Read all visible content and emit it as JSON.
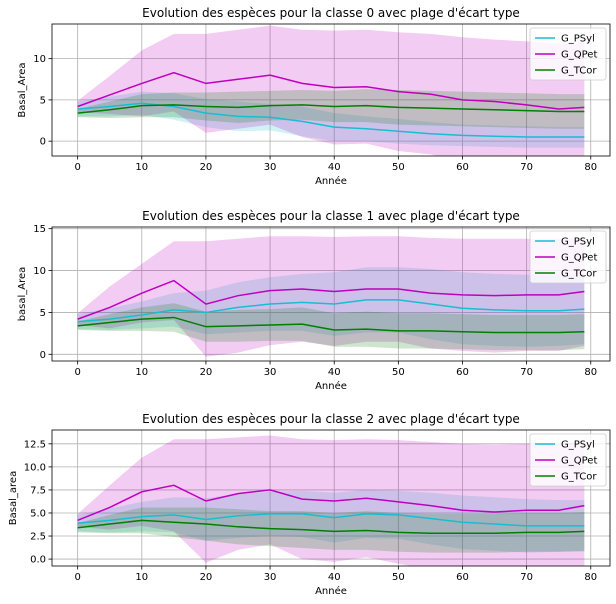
{
  "chart_data": [
    {
      "type": "line",
      "title": "Evolution des espèces pour la classe 0 avec plage d'écart type",
      "xlabel": "Année",
      "ylabel": "Basal_Area",
      "xlim": [
        -4,
        83
      ],
      "ylim": [
        -1.8,
        14.2
      ],
      "xticks": [
        0,
        10,
        20,
        30,
        40,
        50,
        60,
        70,
        80
      ],
      "yticks": [
        0,
        5,
        10
      ],
      "ytick_labels": [
        "0",
        "5",
        "10"
      ],
      "grid": true,
      "legend": "upper right",
      "series": [
        {
          "name": "G_PSyl",
          "color": "#17becf",
          "x": [
            0,
            5,
            10,
            15,
            20,
            25,
            30,
            35,
            40,
            45,
            50,
            55,
            60,
            65,
            70,
            75,
            79
          ],
          "y": [
            3.9,
            4.2,
            4.6,
            4.2,
            3.4,
            3.0,
            2.9,
            2.4,
            1.7,
            1.5,
            1.2,
            0.9,
            0.7,
            0.6,
            0.5,
            0.5,
            0.5
          ],
          "upper": [
            4.8,
            5.4,
            6.0,
            5.8,
            5.1,
            4.8,
            4.5,
            4.2,
            3.4,
            3.0,
            2.7,
            2.3,
            2.0,
            1.9,
            1.8,
            1.7,
            1.7
          ],
          "lower": [
            3.0,
            3.0,
            3.2,
            2.6,
            1.7,
            1.2,
            1.3,
            0.6,
            0.0,
            -0.0,
            -0.3,
            -0.5,
            -0.6,
            -0.7,
            -0.8,
            -0.8,
            -0.8
          ]
        },
        {
          "name": "G_QPet",
          "color": "#bf00bf",
          "x": [
            0,
            5,
            10,
            15,
            20,
            25,
            30,
            35,
            40,
            45,
            50,
            55,
            60,
            65,
            70,
            75,
            79
          ],
          "y": [
            4.2,
            5.6,
            7.0,
            8.3,
            7.0,
            7.5,
            8.0,
            7.0,
            6.5,
            6.6,
            6.0,
            5.7,
            5.0,
            4.8,
            4.4,
            3.9,
            4.1
          ],
          "upper": [
            4.9,
            7.9,
            11.0,
            13.0,
            13.0,
            13.5,
            14.0,
            13.5,
            13.4,
            13.5,
            13.2,
            13.0,
            12.6,
            12.3,
            12.1,
            11.8,
            11.9
          ],
          "lower": [
            3.5,
            3.3,
            3.0,
            3.6,
            1.0,
            1.5,
            2.0,
            0.5,
            -0.4,
            -0.3,
            -1.2,
            -1.6,
            -2.6,
            -2.7,
            -3.3,
            -4.0,
            -3.7
          ]
        },
        {
          "name": "G_TCor",
          "color": "#007f00",
          "x": [
            0,
            5,
            10,
            15,
            20,
            25,
            30,
            35,
            40,
            45,
            50,
            55,
            60,
            65,
            70,
            75,
            79
          ],
          "y": [
            3.4,
            3.8,
            4.3,
            4.4,
            4.2,
            4.1,
            4.3,
            4.4,
            4.2,
            4.3,
            4.1,
            4.0,
            3.9,
            3.8,
            3.7,
            3.6,
            3.6
          ],
          "upper": [
            3.9,
            4.8,
            5.7,
            5.9,
            5.9,
            6.0,
            6.1,
            6.2,
            6.1,
            6.3,
            6.2,
            6.1,
            6.0,
            5.9,
            5.8,
            5.7,
            5.7
          ],
          "lower": [
            2.9,
            2.8,
            2.9,
            2.9,
            2.5,
            2.2,
            2.5,
            2.6,
            2.3,
            2.3,
            2.0,
            1.9,
            1.8,
            1.7,
            1.6,
            1.5,
            1.5
          ]
        }
      ]
    },
    {
      "type": "line",
      "title": "Evolution des espèces pour la classe 1 avec plage d'écart type",
      "xlabel": "Année",
      "ylabel": "basal_Area",
      "xlim": [
        -4,
        83
      ],
      "ylim": [
        -0.8,
        15.2
      ],
      "xticks": [
        0,
        10,
        20,
        30,
        40,
        50,
        60,
        70,
        80
      ],
      "yticks": [
        0,
        5,
        10,
        15
      ],
      "ytick_labels": [
        "0",
        "5",
        "10",
        "15"
      ],
      "grid": true,
      "legend": "upper right",
      "series": [
        {
          "name": "G_PSyl",
          "color": "#17becf",
          "x": [
            0,
            5,
            10,
            15,
            20,
            25,
            30,
            35,
            40,
            45,
            50,
            55,
            60,
            65,
            70,
            75,
            79
          ],
          "y": [
            3.9,
            4.2,
            4.7,
            5.3,
            5.0,
            5.6,
            6.0,
            6.2,
            6.0,
            6.5,
            6.5,
            6.0,
            5.5,
            5.3,
            5.2,
            5.2,
            5.4
          ],
          "upper": [
            4.8,
            5.5,
            6.3,
            7.3,
            7.6,
            8.6,
            9.2,
            9.6,
            9.8,
            10.4,
            10.4,
            10.2,
            9.8,
            9.6,
            9.5,
            9.4,
            9.6
          ],
          "lower": [
            3.0,
            2.9,
            3.1,
            3.3,
            2.4,
            2.6,
            2.8,
            2.8,
            2.2,
            2.6,
            2.6,
            1.8,
            1.2,
            1.0,
            0.9,
            1.0,
            1.2
          ]
        },
        {
          "name": "G_QPet",
          "color": "#bf00bf",
          "x": [
            0,
            5,
            10,
            15,
            20,
            25,
            30,
            35,
            40,
            45,
            50,
            55,
            60,
            65,
            70,
            75,
            79
          ],
          "y": [
            4.2,
            5.6,
            7.3,
            8.8,
            6.0,
            7.0,
            7.6,
            7.8,
            7.5,
            7.8,
            7.8,
            7.3,
            7.1,
            7.0,
            7.1,
            7.1,
            7.5
          ],
          "upper": [
            4.9,
            8.1,
            10.8,
            13.5,
            13.5,
            13.8,
            14.1,
            14.1,
            14.0,
            14.1,
            14.1,
            13.9,
            13.8,
            13.8,
            13.8,
            13.8,
            14.0
          ],
          "lower": [
            3.5,
            3.1,
            3.8,
            4.1,
            -0.3,
            0.2,
            1.1,
            1.5,
            1.0,
            1.5,
            1.5,
            0.7,
            0.4,
            0.2,
            0.4,
            0.4,
            1.0
          ]
        },
        {
          "name": "G_TCor",
          "color": "#007f00",
          "x": [
            0,
            5,
            10,
            15,
            20,
            25,
            30,
            35,
            40,
            45,
            50,
            55,
            60,
            65,
            70,
            75,
            79
          ],
          "y": [
            3.4,
            3.8,
            4.2,
            4.4,
            3.3,
            3.4,
            3.5,
            3.6,
            2.9,
            3.0,
            2.8,
            2.8,
            2.7,
            2.6,
            2.6,
            2.6,
            2.7
          ],
          "upper": [
            3.9,
            4.8,
            5.6,
            6.1,
            5.1,
            5.3,
            5.4,
            5.6,
            4.9,
            5.1,
            4.9,
            4.9,
            4.8,
            4.7,
            4.7,
            4.7,
            4.8
          ],
          "lower": [
            2.9,
            2.8,
            2.8,
            2.7,
            1.5,
            1.5,
            1.6,
            1.6,
            0.9,
            0.9,
            0.7,
            0.7,
            0.6,
            0.5,
            0.5,
            0.5,
            0.6
          ]
        }
      ]
    },
    {
      "type": "line",
      "title": "Evolution des espèces pour la classe 2 avec plage d'écart type",
      "xlabel": "Année",
      "ylabel": "Basal_area",
      "xlim": [
        -4,
        83
      ],
      "ylim": [
        -0.75,
        14
      ],
      "xticks": [
        0,
        10,
        20,
        30,
        40,
        50,
        60,
        70,
        80
      ],
      "yticks": [
        0,
        2.5,
        5,
        7.5,
        10,
        12.5
      ],
      "ytick_labels": [
        "0.0",
        "2.5",
        "5.0",
        "7.5",
        "10.0",
        "12.5"
      ],
      "grid": true,
      "legend": "upper right",
      "series": [
        {
          "name": "G_PSyl",
          "color": "#17becf",
          "x": [
            0,
            5,
            10,
            15,
            20,
            25,
            30,
            35,
            40,
            45,
            50,
            55,
            60,
            65,
            70,
            75,
            79
          ],
          "y": [
            3.9,
            4.2,
            4.6,
            4.8,
            4.3,
            4.7,
            4.9,
            4.9,
            4.5,
            4.9,
            4.8,
            4.4,
            4.0,
            3.8,
            3.6,
            3.6,
            3.6
          ],
          "upper": [
            4.8,
            5.5,
            6.2,
            6.7,
            6.6,
            7.1,
            7.3,
            7.4,
            7.2,
            7.5,
            7.4,
            7.2,
            6.9,
            6.7,
            6.5,
            6.4,
            6.4
          ],
          "lower": [
            3.0,
            2.9,
            3.0,
            2.9,
            2.0,
            2.3,
            2.5,
            2.4,
            1.8,
            2.3,
            2.2,
            1.6,
            1.1,
            0.9,
            0.7,
            0.8,
            0.8
          ]
        },
        {
          "name": "G_QPet",
          "color": "#bf00bf",
          "x": [
            0,
            5,
            10,
            15,
            20,
            25,
            30,
            35,
            40,
            45,
            50,
            55,
            60,
            65,
            70,
            75,
            79
          ],
          "y": [
            4.2,
            5.6,
            7.3,
            8.0,
            6.3,
            7.1,
            7.5,
            6.5,
            6.3,
            6.6,
            6.2,
            5.8,
            5.3,
            5.1,
            5.3,
            5.3,
            5.8
          ],
          "upper": [
            4.9,
            8.0,
            11.0,
            13.0,
            13.0,
            13.2,
            13.4,
            13.0,
            12.9,
            13.0,
            12.9,
            12.7,
            12.5,
            12.4,
            12.5,
            12.5,
            12.7
          ],
          "lower": [
            3.5,
            3.2,
            3.6,
            3.0,
            -0.4,
            1.0,
            1.6,
            0.0,
            -0.3,
            0.2,
            -0.5,
            -1.1,
            -1.9,
            -2.2,
            -1.9,
            -1.9,
            -1.1
          ]
        },
        {
          "name": "G_TCor",
          "color": "#007f00",
          "x": [
            0,
            5,
            10,
            15,
            20,
            25,
            30,
            35,
            40,
            45,
            50,
            55,
            60,
            65,
            70,
            75,
            79
          ],
          "y": [
            3.4,
            3.8,
            4.2,
            4.0,
            3.8,
            3.5,
            3.3,
            3.2,
            3.0,
            3.1,
            2.9,
            2.8,
            2.8,
            2.8,
            2.9,
            2.9,
            3.0
          ],
          "upper": [
            3.9,
            4.8,
            5.6,
            5.6,
            5.6,
            5.4,
            5.2,
            5.2,
            5.0,
            5.2,
            5.0,
            4.9,
            4.9,
            4.9,
            5.0,
            5.0,
            5.1
          ],
          "lower": [
            2.9,
            2.8,
            2.8,
            2.4,
            2.0,
            1.6,
            1.4,
            1.2,
            1.0,
            1.0,
            0.8,
            0.7,
            0.7,
            0.7,
            0.8,
            0.8,
            0.9
          ]
        }
      ]
    }
  ]
}
